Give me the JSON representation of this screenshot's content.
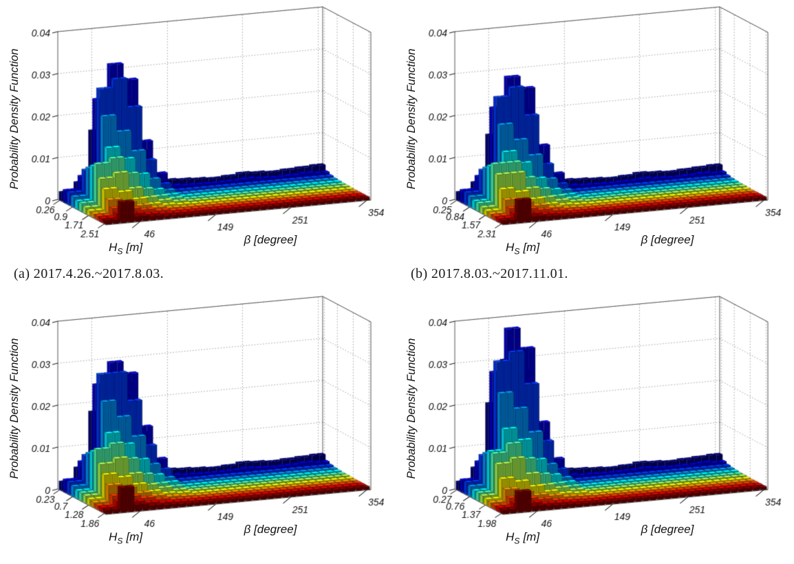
{
  "axes": {
    "zlabel": "Probability Density Function",
    "xlabel": "β [degree]",
    "hs_label": {
      "base": "H",
      "sub": "S",
      "unit": "[m]"
    },
    "z_ticks": {
      "labels": [
        "0",
        "0.01",
        "0.02",
        "0.03",
        "0.04"
      ],
      "values": [
        0,
        0.01,
        0.02,
        0.03,
        0.04
      ]
    },
    "z_max": 0.04,
    "beta_ticks": {
      "labels": [
        "46",
        "149",
        "251",
        "354"
      ],
      "values": [
        46,
        149,
        251,
        354
      ]
    },
    "beta_range": [
      0,
      360
    ],
    "colormap": "jet",
    "colormap_low": "#00008f",
    "colormap_high": "#8f0000",
    "background": "#ffffff"
  },
  "chart_data": [
    {
      "id": "a",
      "type": "bar",
      "subtype": "3d-histogram",
      "caption": "(a)  2017.4.26.~2017.8.03.",
      "hs_ticks": {
        "labels": [
          "0.26",
          "0.9",
          "1.71",
          "2.51"
        ],
        "values": [
          0.26,
          0.9,
          1.71,
          2.51
        ]
      },
      "beta_bins": {
        "count": 18,
        "range_deg": [
          0,
          360
        ]
      },
      "hs_bins": {
        "count": 12
      },
      "matrix_unit": 0.001,
      "matrix": [
        [
          2,
          4,
          16,
          24,
          22,
          10,
          4,
          2.6,
          2.4,
          2.2,
          2,
          2.2,
          2.6,
          2.4,
          2.2,
          2.4,
          2.6,
          2.8
        ],
        [
          3,
          6,
          24,
          32,
          28,
          13,
          5,
          1.8,
          1.6,
          1.5,
          1.5,
          1.6,
          1.8,
          1.6,
          1.5,
          1.6,
          1.8,
          1.6
        ],
        [
          3,
          8,
          27,
          29,
          22,
          9,
          3,
          1.2,
          1.2,
          1.2,
          1.2,
          1.2,
          1.2,
          1.2,
          1.2,
          1.2,
          1.2,
          1.2
        ],
        [
          2.5,
          9,
          21,
          17,
          12,
          5,
          2,
          1,
          1,
          1,
          1,
          1,
          1,
          1,
          1,
          1,
          1,
          1
        ],
        [
          2,
          10,
          14,
          11,
          7,
          3,
          1.5,
          0.9,
          0.9,
          0.9,
          0.9,
          0.9,
          0.9,
          0.9,
          0.9,
          0.9,
          0.9,
          0.9
        ],
        [
          2,
          11,
          12,
          8,
          4,
          2,
          1.2,
          0.8,
          0.8,
          0.8,
          0.8,
          0.8,
          0.8,
          0.8,
          0.8,
          0.8,
          0.8,
          0.8
        ],
        [
          1.5,
          8,
          9,
          5,
          2.5,
          1.5,
          1,
          0.8,
          0.8,
          0.8,
          0.8,
          0.8,
          0.8,
          0.8,
          0.8,
          0.8,
          0.8,
          0.8
        ],
        [
          1.2,
          6,
          5,
          3,
          1.5,
          1,
          0.8,
          0.7,
          0.7,
          0.7,
          0.7,
          0.7,
          0.7,
          0.7,
          0.7,
          0.7,
          0.7,
          0.7
        ],
        [
          1,
          4,
          3,
          2,
          1.2,
          0.8,
          0.7,
          0.7,
          0.7,
          0.7,
          0.7,
          0.7,
          0.7,
          0.7,
          0.7,
          0.7,
          0.7,
          0.7
        ],
        [
          1,
          2.5,
          2,
          1.5,
          1,
          0.7,
          0.7,
          0.7,
          0.7,
          0.7,
          0.7,
          0.7,
          0.7,
          0.7,
          0.7,
          0.7,
          0.7,
          0.7
        ],
        [
          0.9,
          1.8,
          1.4,
          1,
          0.8,
          0.7,
          0.7,
          0.7,
          0.7,
          0.7,
          0.7,
          0.7,
          0.7,
          0.7,
          0.7,
          0.7,
          0.7,
          0.7
        ],
        [
          0.9,
          5,
          1.2,
          0.9,
          0.7,
          0.7,
          0.7,
          0.7,
          0.7,
          0.7,
          0.7,
          0.7,
          0.7,
          0.7,
          0.7,
          0.7,
          0.7,
          0.7
        ]
      ]
    },
    {
      "id": "b",
      "type": "bar",
      "subtype": "3d-histogram",
      "caption": "(b)  2017.8.03.~2017.11.01.",
      "hs_ticks": {
        "labels": [
          "0.25",
          "0.84",
          "1.57",
          "2.31"
        ],
        "values": [
          0.25,
          0.84,
          1.57,
          2.31
        ]
      },
      "beta_bins": {
        "count": 18,
        "range_deg": [
          0,
          360
        ]
      },
      "hs_bins": {
        "count": 12
      },
      "matrix_unit": 0.001,
      "matrix": [
        [
          2,
          4,
          15,
          22,
          20,
          9,
          4,
          2.6,
          2.4,
          2.2,
          2,
          2.2,
          2.6,
          2.4,
          2.2,
          2.4,
          2.6,
          2.8
        ],
        [
          3,
          6,
          22,
          29,
          26,
          12,
          5,
          1.8,
          1.6,
          1.5,
          1.5,
          1.6,
          1.8,
          1.6,
          1.5,
          1.6,
          1.8,
          1.6
        ],
        [
          3,
          8,
          25,
          27,
          20,
          8,
          3,
          1.2,
          1.2,
          1.2,
          1.2,
          1.2,
          1.2,
          1.2,
          1.2,
          1.2,
          1.2,
          1.2
        ],
        [
          2.5,
          9,
          19,
          15,
          11,
          5,
          2,
          1,
          1,
          1,
          1,
          1,
          1,
          1,
          1,
          1,
          1,
          1
        ],
        [
          2,
          10,
          13,
          10,
          6,
          3,
          1.5,
          0.9,
          0.9,
          0.9,
          0.9,
          0.9,
          0.9,
          0.9,
          0.9,
          0.9,
          0.9,
          0.9
        ],
        [
          2,
          11,
          11,
          7,
          4,
          2,
          1.2,
          0.8,
          0.8,
          0.8,
          0.8,
          0.8,
          0.8,
          0.8,
          0.8,
          0.8,
          0.8,
          0.8
        ],
        [
          1.5,
          9,
          9,
          5,
          2.5,
          1.5,
          1,
          0.8,
          0.8,
          0.8,
          0.8,
          0.8,
          0.8,
          0.8,
          0.8,
          0.8,
          0.8,
          0.8
        ],
        [
          1.2,
          6,
          5,
          3,
          1.5,
          1,
          0.8,
          0.7,
          0.7,
          0.7,
          0.7,
          0.7,
          0.7,
          0.7,
          0.7,
          0.7,
          0.7,
          0.7
        ],
        [
          1,
          4,
          3,
          2,
          1.2,
          0.8,
          0.7,
          0.7,
          0.7,
          0.7,
          0.7,
          0.7,
          0.7,
          0.7,
          0.7,
          0.7,
          0.7,
          0.7
        ],
        [
          1,
          2.5,
          2,
          1.5,
          1,
          0.7,
          0.7,
          0.7,
          0.7,
          0.7,
          0.7,
          0.7,
          0.7,
          0.7,
          0.7,
          0.7,
          0.7,
          0.7
        ],
        [
          0.9,
          1.8,
          1.4,
          1,
          0.8,
          0.7,
          0.7,
          0.7,
          0.7,
          0.7,
          0.7,
          0.7,
          0.7,
          0.7,
          0.7,
          0.7,
          0.7,
          0.7
        ],
        [
          0.9,
          5.5,
          1.2,
          0.9,
          0.7,
          0.7,
          0.7,
          0.7,
          0.7,
          0.7,
          0.7,
          0.7,
          0.7,
          0.7,
          0.7,
          0.7,
          0.7,
          0.7
        ]
      ]
    },
    {
      "id": "c",
      "type": "bar",
      "subtype": "3d-histogram",
      "hs_ticks": {
        "labels": [
          "0.23",
          "0.7",
          "1.28",
          "1.86"
        ],
        "values": [
          0.23,
          0.7,
          1.28,
          1.86
        ]
      },
      "beta_bins": {
        "count": 18,
        "range_deg": [
          0,
          360
        ]
      },
      "hs_bins": {
        "count": 12
      },
      "matrix_unit": 0.001,
      "matrix": [
        [
          2,
          5,
          18,
          26,
          24,
          12,
          5,
          2.6,
          2.4,
          2.2,
          2,
          2.2,
          2.6,
          2.4,
          2.2,
          2.4,
          2.6,
          2.8
        ],
        [
          3,
          7,
          25,
          30,
          27,
          14,
          6,
          1.8,
          1.6,
          1.5,
          1.5,
          1.6,
          1.8,
          1.6,
          1.5,
          1.6,
          1.8,
          1.6
        ],
        [
          3,
          9,
          28,
          28,
          21,
          10,
          4,
          1.2,
          1.2,
          1.2,
          1.2,
          1.2,
          1.2,
          1.2,
          1.2,
          1.2,
          1.2,
          1.2
        ],
        [
          2.5,
          10,
          22,
          18,
          13,
          6,
          2.5,
          1,
          1,
          1,
          1,
          1,
          1,
          1,
          1,
          1,
          1,
          1
        ],
        [
          2,
          11,
          15,
          12,
          8,
          4,
          2,
          0.9,
          0.9,
          0.9,
          0.9,
          0.9,
          0.9,
          0.9,
          0.9,
          0.9,
          0.9,
          0.9
        ],
        [
          2,
          12,
          13,
          9,
          5,
          2.5,
          1.5,
          0.8,
          0.8,
          0.8,
          0.8,
          0.8,
          0.8,
          0.8,
          0.8,
          0.8,
          0.8,
          0.8
        ],
        [
          1.8,
          9,
          10,
          6,
          3,
          2,
          1.2,
          0.8,
          0.8,
          0.8,
          0.8,
          0.8,
          0.8,
          0.8,
          0.8,
          0.8,
          0.8,
          0.8
        ],
        [
          1.5,
          7,
          6,
          4,
          2,
          1.2,
          1,
          0.7,
          0.7,
          0.7,
          0.7,
          0.7,
          0.7,
          0.7,
          0.7,
          0.7,
          0.7,
          0.7
        ],
        [
          1.2,
          5,
          4,
          2.5,
          1.5,
          1,
          0.8,
          0.7,
          0.7,
          0.7,
          0.7,
          0.7,
          0.7,
          0.7,
          0.7,
          0.7,
          0.7,
          0.7
        ],
        [
          1,
          3,
          2.5,
          1.8,
          1.2,
          0.8,
          0.7,
          0.7,
          0.7,
          0.7,
          0.7,
          0.7,
          0.7,
          0.7,
          0.7,
          0.7,
          0.7,
          0.7
        ],
        [
          1,
          2.2,
          1.8,
          1.2,
          0.9,
          0.8,
          0.7,
          0.7,
          0.7,
          0.7,
          0.7,
          0.7,
          0.7,
          0.7,
          0.7,
          0.7,
          0.7,
          0.7
        ],
        [
          0.9,
          6,
          1.5,
          1,
          0.8,
          0.7,
          0.7,
          0.7,
          0.7,
          0.7,
          0.7,
          0.7,
          0.7,
          0.7,
          0.7,
          0.7,
          0.7,
          0.7
        ]
      ]
    },
    {
      "id": "d",
      "type": "bar",
      "subtype": "3d-histogram",
      "hs_ticks": {
        "labels": [
          "0.27",
          "0.76",
          "1.37",
          "1.98"
        ],
        "values": [
          0.27,
          0.76,
          1.37,
          1.98
        ]
      },
      "beta_bins": {
        "count": 18,
        "range_deg": [
          0,
          360
        ]
      },
      "hs_bins": {
        "count": 12
      },
      "matrix_unit": 0.001,
      "matrix": [
        [
          2,
          5,
          20,
          30,
          27,
          12,
          5,
          2.6,
          2.4,
          2.2,
          2,
          2.2,
          2.6,
          2.4,
          2.2,
          2.4,
          2.6,
          2.8
        ],
        [
          3,
          7,
          28,
          38,
          33,
          15,
          6,
          1.8,
          1.6,
          1.5,
          1.5,
          1.6,
          1.8,
          1.6,
          1.5,
          1.6,
          1.8,
          1.6
        ],
        [
          3,
          9,
          31,
          33,
          25,
          11,
          4,
          1.2,
          1.2,
          1.2,
          1.2,
          1.2,
          1.2,
          1.2,
          1.2,
          1.2,
          1.2,
          1.2
        ],
        [
          2.5,
          10,
          24,
          20,
          14,
          6,
          2.5,
          1,
          1,
          1,
          1,
          1,
          1,
          1,
          1,
          1,
          1,
          1
        ],
        [
          2,
          11,
          16,
          13,
          8,
          4,
          2,
          0.9,
          0.9,
          0.9,
          0.9,
          0.9,
          0.9,
          0.9,
          0.9,
          0.9,
          0.9,
          0.9
        ],
        [
          2,
          11,
          13,
          9,
          5,
          2.5,
          1.5,
          0.8,
          0.8,
          0.8,
          0.8,
          0.8,
          0.8,
          0.8,
          0.8,
          0.8,
          0.8,
          0.8
        ],
        [
          1.8,
          9,
          10,
          6,
          3,
          2,
          1.2,
          0.8,
          0.8,
          0.8,
          0.8,
          0.8,
          0.8,
          0.8,
          0.8,
          0.8,
          0.8,
          0.8
        ],
        [
          1.5,
          6,
          5,
          3.5,
          2,
          1.2,
          1,
          0.7,
          0.7,
          0.7,
          0.7,
          0.7,
          0.7,
          0.7,
          0.7,
          0.7,
          0.7,
          0.7
        ],
        [
          1.2,
          4,
          3,
          2,
          1.5,
          1,
          0.8,
          0.7,
          0.7,
          0.7,
          0.7,
          0.7,
          0.7,
          0.7,
          0.7,
          0.7,
          0.7,
          0.7
        ],
        [
          1,
          2.5,
          2,
          1.5,
          1,
          0.8,
          0.7,
          0.7,
          0.7,
          0.7,
          0.7,
          0.7,
          0.7,
          0.7,
          0.7,
          0.7,
          0.7,
          0.7
        ],
        [
          1,
          1.8,
          1.5,
          1,
          0.9,
          0.8,
          0.7,
          0.7,
          0.7,
          0.7,
          0.7,
          0.7,
          0.7,
          0.7,
          0.7,
          0.7,
          0.7,
          0.7
        ],
        [
          0.9,
          5,
          1.2,
          0.9,
          0.8,
          0.7,
          0.7,
          0.7,
          0.7,
          0.7,
          0.7,
          0.7,
          0.7,
          0.7,
          0.7,
          0.7,
          0.7,
          0.7
        ]
      ]
    }
  ]
}
